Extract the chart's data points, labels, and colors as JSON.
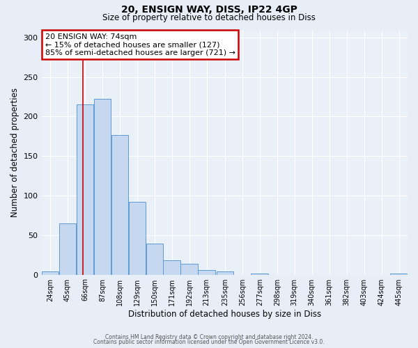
{
  "title": "20, ENSIGN WAY, DISS, IP22 4GP",
  "subtitle": "Size of property relative to detached houses in Diss",
  "xlabel": "Distribution of detached houses by size in Diss",
  "ylabel": "Number of detached properties",
  "bin_labels": [
    "24sqm",
    "45sqm",
    "66sqm",
    "87sqm",
    "108sqm",
    "129sqm",
    "150sqm",
    "171sqm",
    "192sqm",
    "213sqm",
    "235sqm",
    "256sqm",
    "277sqm",
    "298sqm",
    "319sqm",
    "340sqm",
    "361sqm",
    "382sqm",
    "403sqm",
    "424sqm",
    "445sqm"
  ],
  "bin_edges": [
    24,
    45,
    66,
    87,
    108,
    129,
    150,
    171,
    192,
    213,
    235,
    256,
    277,
    298,
    319,
    340,
    361,
    382,
    403,
    424,
    445
  ],
  "bar_heights": [
    4,
    65,
    215,
    222,
    177,
    92,
    39,
    18,
    14,
    6,
    4,
    0,
    1,
    0,
    0,
    0,
    0,
    0,
    0,
    0,
    1
  ],
  "bar_color": "#c5d8f0",
  "bar_edge_color": "#5b9bd5",
  "property_size": 74,
  "red_line_x": 74,
  "annotation_title": "20 ENSIGN WAY: 74sqm",
  "annotation_line1": "← 15% of detached houses are smaller (127)",
  "annotation_line2": "85% of semi-detached houses are larger (721) →",
  "annotation_box_color": "#ffffff",
  "annotation_box_edge_color": "#cc0000",
  "red_line_color": "#cc0000",
  "ylim": [
    0,
    310
  ],
  "yticks": [
    0,
    50,
    100,
    150,
    200,
    250,
    300
  ],
  "background_color": "#e8eef7",
  "plot_bg_color": "#eaf0f8",
  "footer1": "Contains HM Land Registry data © Crown copyright and database right 2024.",
  "footer2": "Contains public sector information licensed under the Open Government Licence v3.0."
}
